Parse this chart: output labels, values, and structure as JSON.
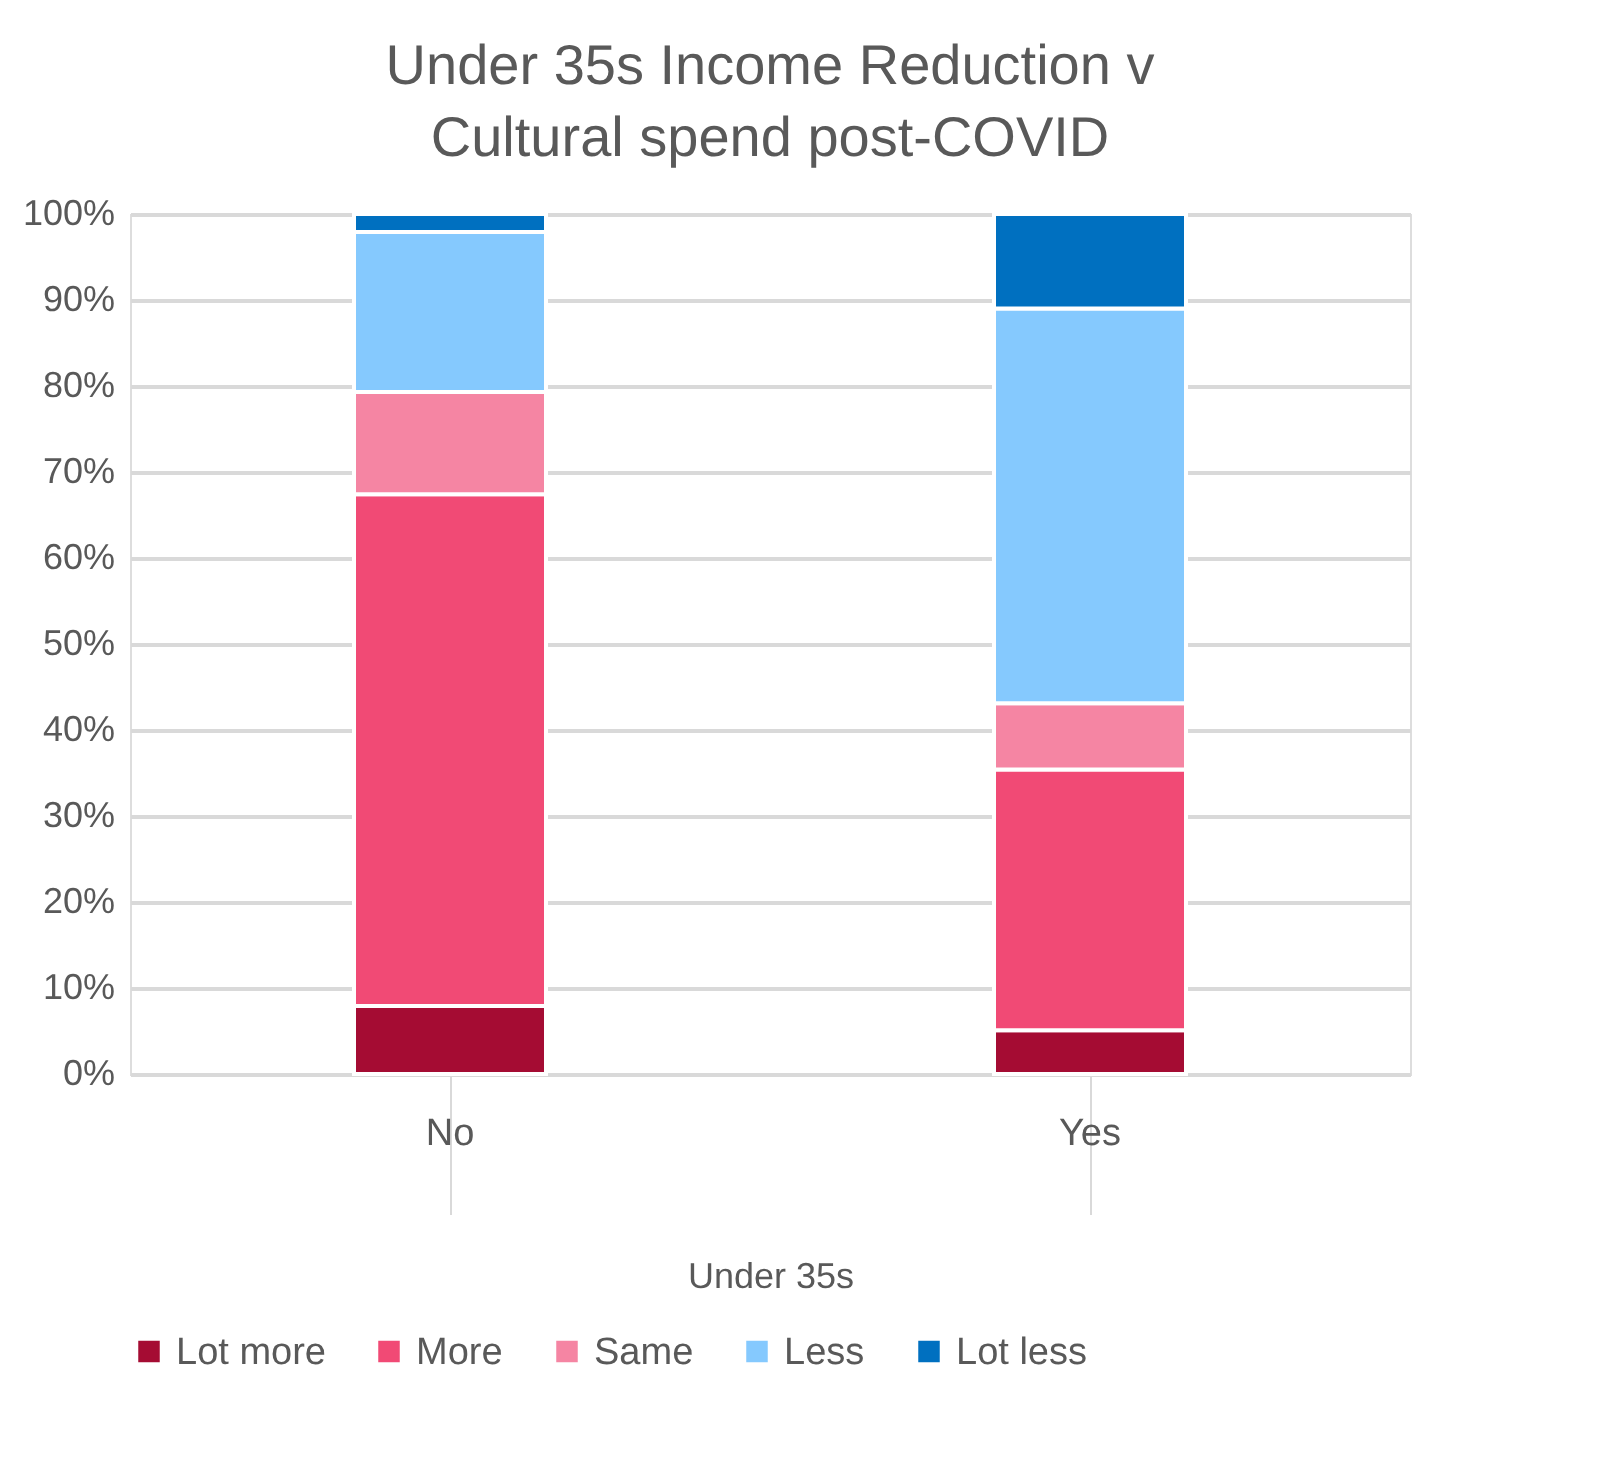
{
  "chart_data": {
    "type": "bar",
    "title": "Under 35s Income Reduction v Cultural spend post-COVID",
    "categories": [
      "No",
      "Yes"
    ],
    "xlabel": "Under 35s",
    "stacked": true,
    "series": [
      {
        "name": "Lot more",
        "color": "#a50c33",
        "values": [
          7.9,
          5.1
        ]
      },
      {
        "name": "More",
        "color": "#f14a75",
        "values": [
          59.5,
          30.3
        ]
      },
      {
        "name": "Same",
        "color": "#f585a3",
        "values": [
          11.9,
          7.7
        ]
      },
      {
        "name": "Less",
        "color": "#85c9fe",
        "values": [
          18.6,
          45.9
        ]
      },
      {
        "name": "Lot less",
        "color": "#0070c0",
        "values": [
          2.1,
          11.0
        ]
      }
    ],
    "ylim": [
      0,
      100
    ],
    "yticks": [
      {
        "value": 0,
        "label": "0%"
      },
      {
        "value": 10,
        "label": "10%"
      },
      {
        "value": 20,
        "label": "20%"
      },
      {
        "value": 30,
        "label": "30%"
      },
      {
        "value": 40,
        "label": "40%"
      },
      {
        "value": 50,
        "label": "50%"
      },
      {
        "value": 60,
        "label": "60%"
      },
      {
        "value": 70,
        "label": "70%"
      },
      {
        "value": 80,
        "label": "80%"
      },
      {
        "value": 90,
        "label": "90%"
      },
      {
        "value": 100,
        "label": "100%"
      }
    ],
    "grid": "y",
    "legend": "bottom"
  }
}
